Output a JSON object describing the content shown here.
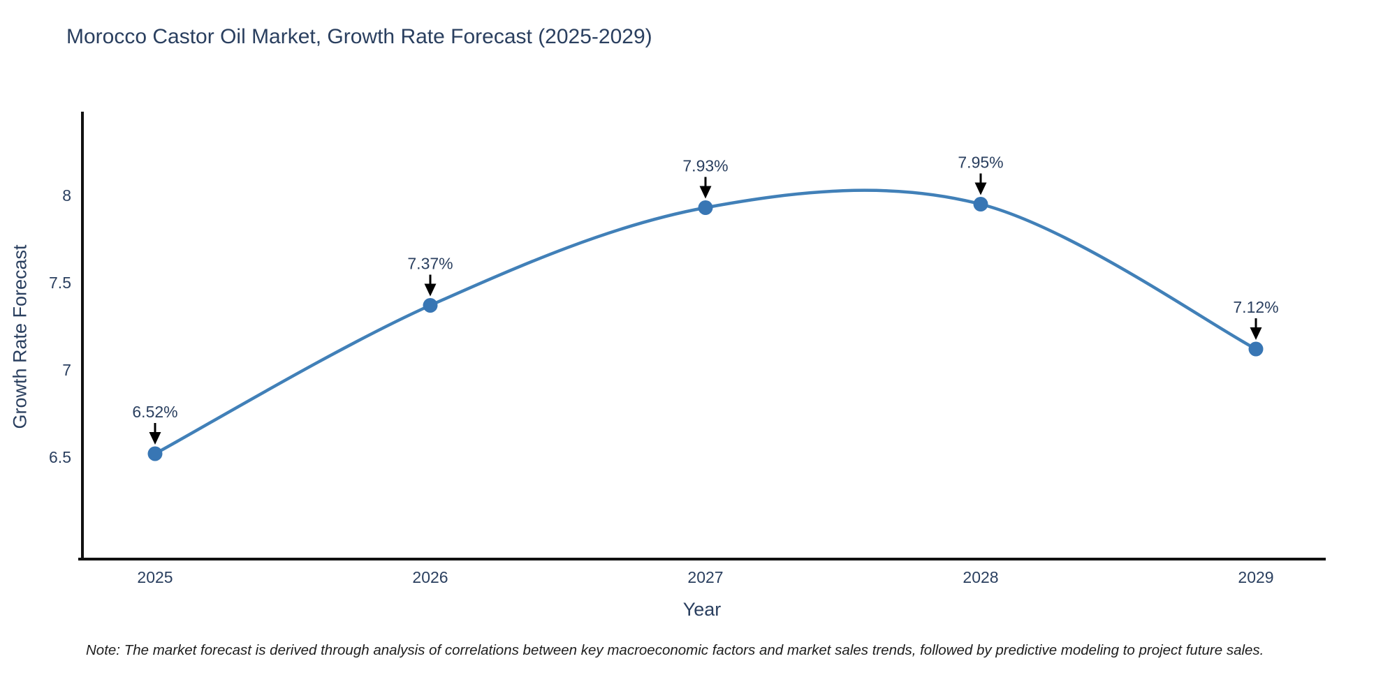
{
  "title": "Morocco Castor Oil Market, Growth Rate Forecast (2025-2029)",
  "note": "Note: The market forecast is derived through analysis of correlations between key macroeconomic factors and market sales trends, followed by predictive modeling to project future sales.",
  "colors": {
    "line": "#4180b8",
    "marker": "#3876b4",
    "axis": "#111111",
    "text": "#2a3f5f",
    "annotation_arrow": "#000000",
    "note_text": "#1d1d1d"
  },
  "chart_data": {
    "type": "line",
    "title": "Morocco Castor Oil Market, Growth Rate Forecast (2025-2029)",
    "x": [
      2025,
      2026,
      2027,
      2028,
      2029
    ],
    "y": [
      6.52,
      7.37,
      7.93,
      7.95,
      7.12
    ],
    "point_labels": [
      "6.52%",
      "7.37%",
      "7.93%",
      "7.95%",
      "7.12%"
    ],
    "xlabel": "Year",
    "ylabel": "Growth Rate Forecast",
    "xtick_labels": [
      "2025",
      "2026",
      "2027",
      "2028",
      "2029"
    ],
    "ytick_values": [
      6.5,
      7.0,
      7.5,
      8.0
    ],
    "ytick_labels": [
      "6.5",
      "7",
      "7.5",
      "8"
    ],
    "ylim": [
      5.9,
      8.5
    ],
    "line_shape": "spline",
    "grid": false,
    "legend_visible": false,
    "annotations_have_arrows": true
  }
}
